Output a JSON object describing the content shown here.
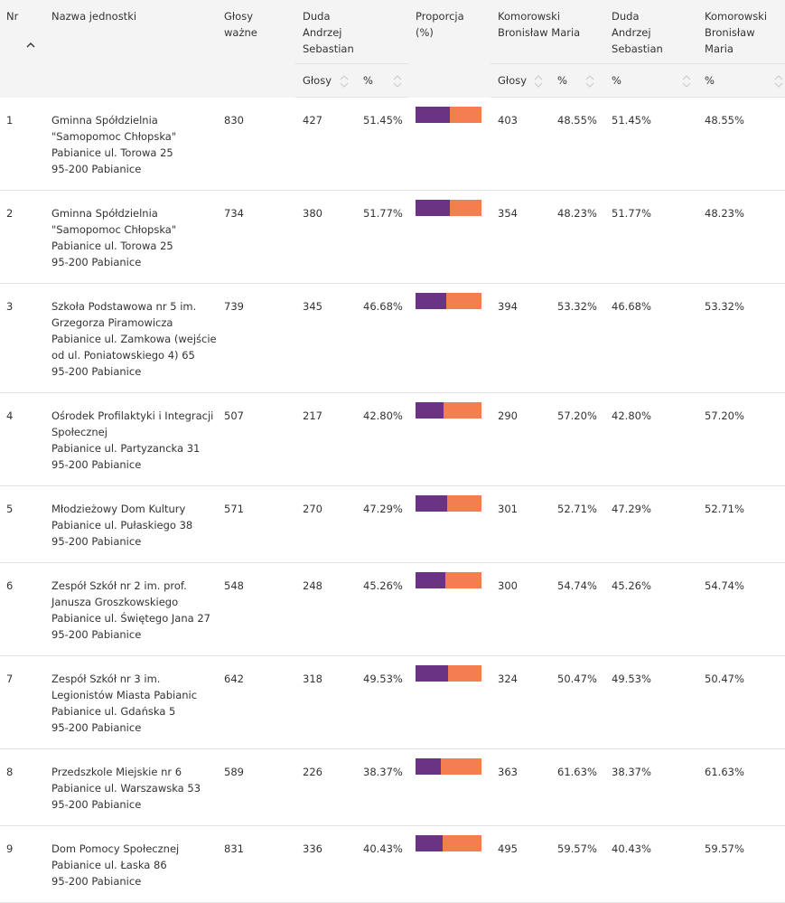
{
  "colors": {
    "candidate_a": "#6a3383",
    "candidate_b": "#f37e4f",
    "header_bg": "#f4f4f4",
    "row_border": "#e3e3e3"
  },
  "header": {
    "nr": "Nr",
    "name": "Nazwa jednostki",
    "valid_votes": [
      "Głosy",
      "ważne"
    ],
    "duda_group": [
      "Duda",
      "Andrzej",
      "Sebastian"
    ],
    "proportion": [
      "Proporcja",
      "(%)"
    ],
    "komorowski_group": [
      "Komorowski",
      "Bronisław Maria"
    ],
    "duda_pct_group": [
      "Duda",
      "Andrzej",
      "Sebastian"
    ],
    "komorowski_pct_group": [
      "Komorowski",
      "Bronisław",
      "Maria"
    ],
    "sub": {
      "duda_votes": "Głosy",
      "duda_pct": "%",
      "kom_votes": "Głosy",
      "kom_pct": "%",
      "duda_pct2": "%",
      "kom_pct2": "%"
    },
    "sort_icons": {
      "active": "sort-ascending-icon",
      "inactive": "sort-both-icon"
    }
  },
  "rows": [
    {
      "nr": "1",
      "name": [
        "Gminna Spółdzielnia",
        "\"Samopomoc Chłopska\"",
        "Pabianice ul. Torowa 25",
        "95-200 Pabianice"
      ],
      "valid": "830",
      "duda_votes": "427",
      "duda_pct": "51.45%",
      "proportion": 0.5145,
      "kom_votes": "403",
      "kom_pct": "48.55%",
      "duda_pct2": "51.45%",
      "kom_pct2": "48.55%"
    },
    {
      "nr": "2",
      "name": [
        "Gminna Spółdzielnia",
        "\"Samopomoc Chłopska\"",
        "Pabianice ul. Torowa 25",
        "95-200 Pabianice"
      ],
      "valid": "734",
      "duda_votes": "380",
      "duda_pct": "51.77%",
      "proportion": 0.5177,
      "kom_votes": "354",
      "kom_pct": "48.23%",
      "duda_pct2": "51.77%",
      "kom_pct2": "48.23%"
    },
    {
      "nr": "3",
      "name": [
        "Szkoła Podstawowa nr 5 im.",
        "Grzegorza Piramowicza",
        "Pabianice ul. Zamkowa (wejście",
        "od ul. Poniatowskiego 4) 65",
        "95-200 Pabianice"
      ],
      "valid": "739",
      "duda_votes": "345",
      "duda_pct": "46.68%",
      "proportion": 0.4668,
      "kom_votes": "394",
      "kom_pct": "53.32%",
      "duda_pct2": "46.68%",
      "kom_pct2": "53.32%"
    },
    {
      "nr": "4",
      "name": [
        "Ośrodek Profilaktyki i Integracji",
        "Społecznej",
        "Pabianice ul. Partyzancka 31",
        "95-200 Pabianice"
      ],
      "valid": "507",
      "duda_votes": "217",
      "duda_pct": "42.80%",
      "proportion": 0.428,
      "kom_votes": "290",
      "kom_pct": "57.20%",
      "duda_pct2": "42.80%",
      "kom_pct2": "57.20%"
    },
    {
      "nr": "5",
      "name": [
        "Młodzieżowy Dom Kultury",
        "Pabianice ul. Pułaskiego 38",
        "95-200 Pabianice"
      ],
      "valid": "571",
      "duda_votes": "270",
      "duda_pct": "47.29%",
      "proportion": 0.4729,
      "kom_votes": "301",
      "kom_pct": "52.71%",
      "duda_pct2": "47.29%",
      "kom_pct2": "52.71%"
    },
    {
      "nr": "6",
      "name": [
        "Zespół Szkół nr 2 im. prof.",
        "Janusza Groszkowskiego",
        "Pabianice ul. Świętego Jana 27",
        "95-200 Pabianice"
      ],
      "valid": "548",
      "duda_votes": "248",
      "duda_pct": "45.26%",
      "proportion": 0.4526,
      "kom_votes": "300",
      "kom_pct": "54.74%",
      "duda_pct2": "45.26%",
      "kom_pct2": "54.74%"
    },
    {
      "nr": "7",
      "name": [
        "Zespół Szkół nr 3 im.",
        "Legionistów Miasta Pabianic",
        "Pabianice ul. Gdańska 5",
        "95-200 Pabianice"
      ],
      "valid": "642",
      "duda_votes": "318",
      "duda_pct": "49.53%",
      "proportion": 0.4953,
      "kom_votes": "324",
      "kom_pct": "50.47%",
      "duda_pct2": "49.53%",
      "kom_pct2": "50.47%"
    },
    {
      "nr": "8",
      "name": [
        "Przedszkole Miejskie nr 6",
        "Pabianice ul. Warszawska 53",
        "95-200 Pabianice"
      ],
      "valid": "589",
      "duda_votes": "226",
      "duda_pct": "38.37%",
      "proportion": 0.3837,
      "kom_votes": "363",
      "kom_pct": "61.63%",
      "duda_pct2": "38.37%",
      "kom_pct2": "61.63%"
    },
    {
      "nr": "9",
      "name": [
        "Dom Pomocy Społecznej",
        "Pabianice ul. Łaska 86",
        "95-200 Pabianice"
      ],
      "valid": "831",
      "duda_votes": "336",
      "duda_pct": "40.43%",
      "proportion": 0.4043,
      "kom_votes": "495",
      "kom_pct": "59.57%",
      "duda_pct2": "40.43%",
      "kom_pct2": "59.57%"
    }
  ]
}
